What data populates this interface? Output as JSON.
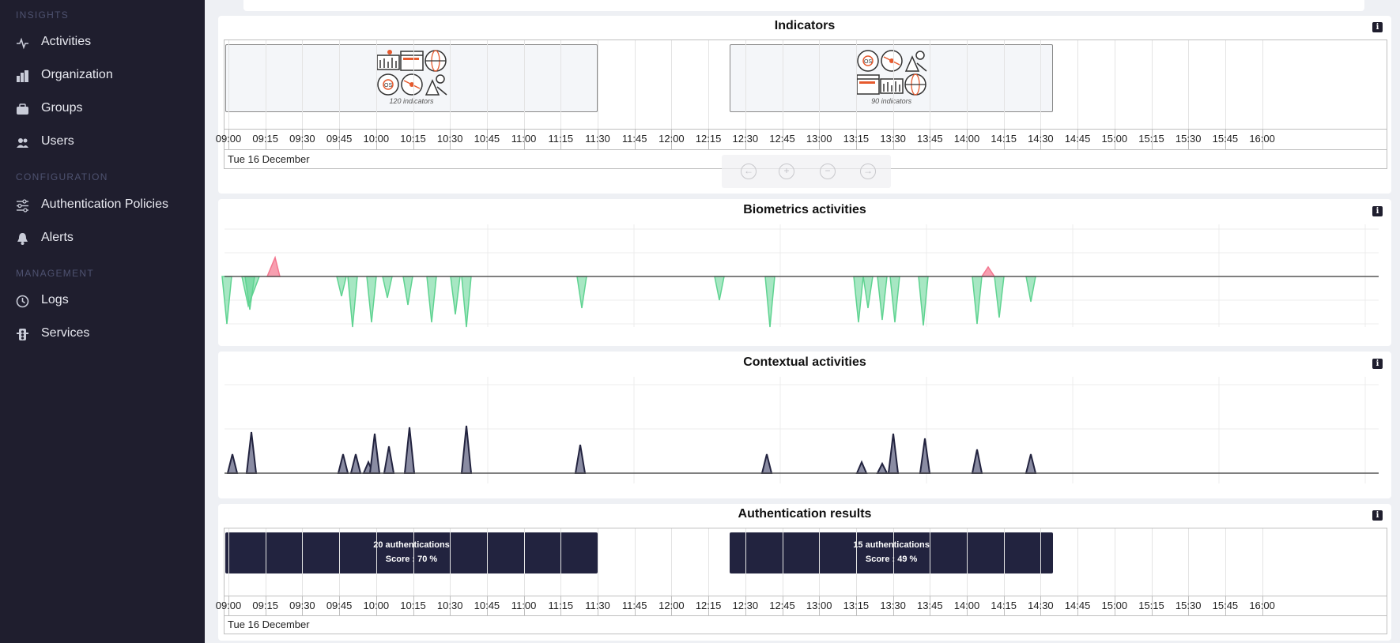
{
  "sidebar": {
    "sections": [
      {
        "title": "INSIGHTS",
        "items": [
          {
            "label": "Activities",
            "icon": "activity-icon"
          },
          {
            "label": "Organization",
            "icon": "organization-icon"
          },
          {
            "label": "Groups",
            "icon": "groups-icon"
          },
          {
            "label": "Users",
            "icon": "users-icon"
          }
        ]
      },
      {
        "title": "CONFIGURATION",
        "items": [
          {
            "label": "Authentication Policies",
            "icon": "sliders-icon"
          },
          {
            "label": "Alerts",
            "icon": "bell-icon"
          }
        ]
      },
      {
        "title": "MANAGEMENT",
        "items": [
          {
            "label": "Logs",
            "icon": "clock-icon"
          },
          {
            "label": "Services",
            "icon": "services-icon"
          }
        ]
      }
    ]
  },
  "timeline_ticks": [
    "09:00",
    "09:15",
    "09:30",
    "09:45",
    "10:00",
    "10:15",
    "10:30",
    "10:45",
    "11:00",
    "11:15",
    "11:30",
    "11:45",
    "12:00",
    "12:15",
    "12:30",
    "12:45",
    "13:00",
    "13:15",
    "13:30",
    "13:45",
    "14:00",
    "14:15",
    "14:30",
    "14:45",
    "15:00",
    "15:15",
    "15:30",
    "15:45",
    "16:00"
  ],
  "timeline_date": "Tue 16 December",
  "indicators": {
    "title": "Indicators",
    "info": "i",
    "groups": [
      {
        "caption": "120 indicators",
        "start": "09:00",
        "end": "11:30"
      },
      {
        "caption": "90 indicators",
        "start": "12:25",
        "end": "14:35"
      }
    ]
  },
  "nav_controls": [
    "move-left-icon",
    "zoom-in-icon",
    "zoom-out-icon",
    "move-right-icon"
  ],
  "biometrics": {
    "title": "Biometrics activities",
    "info": "i",
    "colors": {
      "positive": "#f4768f",
      "negative": "#5fd391"
    }
  },
  "contextual": {
    "title": "Contextual activities",
    "info": "i",
    "colors": {
      "fill": "#8a8ca3",
      "stroke": "#22233f"
    }
  },
  "auth_results": {
    "title": "Authentication results",
    "info": "i",
    "groups": [
      {
        "count_label": "20 authentications",
        "score_label": "Score :   70 %",
        "start": "09:00",
        "end": "11:30"
      },
      {
        "count_label": "15 authentications",
        "score_label": "Score :   49 %",
        "start": "12:25",
        "end": "14:35"
      }
    ]
  }
}
